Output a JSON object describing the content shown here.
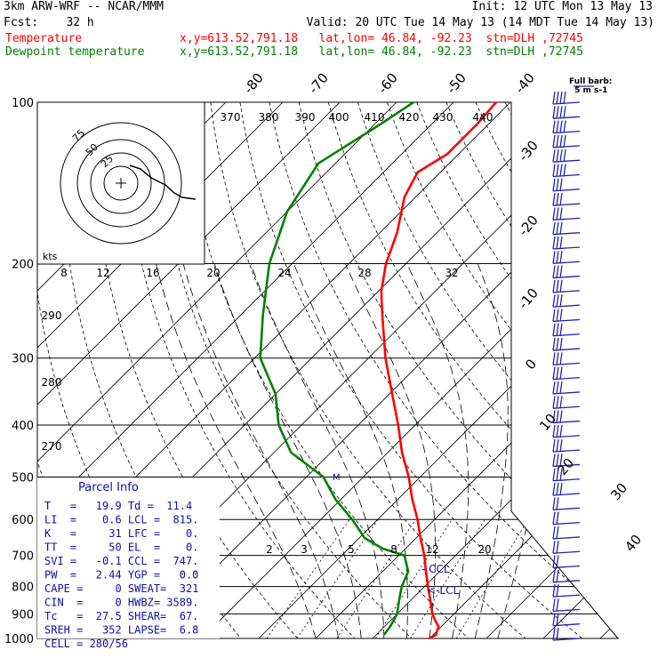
{
  "header": {
    "model": "3km ARW-WRF -- NCAR/MMM",
    "init": "Init: 12 UTC Mon 13 May 13",
    "fcst": "Fcst:    32 h",
    "valid": "Valid: 20 UTC Tue 14 May 13 (14 MDT Tue 14 May 13)",
    "temp_label": "Temperature",
    "temp_info": "x,y=613.52,791.18   lat,lon= 46.84, -92.23  stn=DLH ,72745",
    "dew_label": "Dewpoint temperature",
    "dew_info": "x,y=613.52,791.18   lat,lon= 46.84, -92.23  stn=DLH ,72745"
  },
  "colors": {
    "temperature": "#ff0000",
    "dewpoint": "#008000",
    "info": "#1010a0",
    "axes": "#000000"
  },
  "chart_data": {
    "type": "line",
    "title": "",
    "pressure_levels": [
      100,
      200,
      300,
      400,
      500,
      600,
      700,
      800,
      900,
      1000
    ],
    "isotherm_labels": [
      "-80",
      "-70",
      "-60",
      "-50",
      "-40",
      "-30",
      "-20",
      "-10",
      "0",
      "10",
      "20",
      "30",
      "40"
    ],
    "theta_labels": [
      "370",
      "380",
      "390",
      "400",
      "410",
      "420",
      "430",
      "440"
    ],
    "theta_left_labels": [
      "290",
      "280",
      "270"
    ],
    "mixing_ratio_labels": [
      "2",
      "3",
      "5",
      "8",
      "12",
      "20"
    ],
    "hodograph": {
      "units_label": "kts",
      "ring_labels": [
        "25",
        "50",
        "75"
      ],
      "axis_labels": [
        "8",
        "12",
        "16",
        "20",
        "24",
        "28",
        "32"
      ]
    },
    "barb_key": "Full barb:\n 5 m s-1",
    "annotations": [
      "CCL",
      "LCL"
    ],
    "series": [
      {
        "name": "Temperature",
        "points": [
          [
            1000,
            19.9
          ],
          [
            985,
            20.5
          ],
          [
            950,
            19.5
          ],
          [
            925,
            17.8
          ],
          [
            900,
            16.2
          ],
          [
            850,
            13.5
          ],
          [
            800,
            10.6
          ],
          [
            750,
            7.6
          ],
          [
            700,
            4.5
          ],
          [
            650,
            0.8
          ],
          [
            600,
            -3.0
          ],
          [
            550,
            -7.5
          ],
          [
            500,
            -12.0
          ],
          [
            450,
            -17.5
          ],
          [
            400,
            -23.0
          ],
          [
            350,
            -29.5
          ],
          [
            300,
            -37.0
          ],
          [
            250,
            -45.0
          ],
          [
            225,
            -49.5
          ],
          [
            200,
            -53.5
          ],
          [
            175,
            -57.0
          ],
          [
            150,
            -62.0
          ],
          [
            135,
            -64.0
          ],
          [
            125,
            -62.0
          ],
          [
            110,
            -62.0
          ],
          [
            100,
            -62.5
          ]
        ]
      },
      {
        "name": "Dewpoint temperature",
        "points": [
          [
            985,
            11.4
          ],
          [
            950,
            11.0
          ],
          [
            900,
            10.0
          ],
          [
            850,
            8.0
          ],
          [
            800,
            6.0
          ],
          [
            750,
            4.5
          ],
          [
            700,
            1.0
          ],
          [
            680,
            -4.0
          ],
          [
            650,
            -9.0
          ],
          [
            600,
            -14.5
          ],
          [
            550,
            -21.0
          ],
          [
            500,
            -27.0
          ],
          [
            450,
            -37.0
          ],
          [
            400,
            -44.0
          ],
          [
            350,
            -50.0
          ],
          [
            300,
            -59.0
          ],
          [
            250,
            -66.0
          ],
          [
            200,
            -74.0
          ],
          [
            160,
            -80.0
          ],
          [
            130,
            -83.0
          ],
          [
            110,
            -79.0
          ],
          [
            100,
            -77.0
          ]
        ]
      }
    ]
  },
  "parcel_info": {
    "title": "Parcel Info",
    "rows": [
      "T   =   19.9 Td =  11.4",
      "LI  =    0.6 LCL =  815.",
      "K   =     31 LFC =    0.",
      "TT  =     50 EL  =    0.",
      "SVI =   -0.1 CCL =  747.",
      "PW  =   2.44 YGP =   0.0",
      "CAPE =     0 SWEAT=  321",
      "CIN  =     0 HWBZ= 3589.",
      "Tc   =  27.5 SHEAR=  67.",
      "SREH =   352 LAPSE=  6.8",
      "CELL = 280/56"
    ]
  }
}
